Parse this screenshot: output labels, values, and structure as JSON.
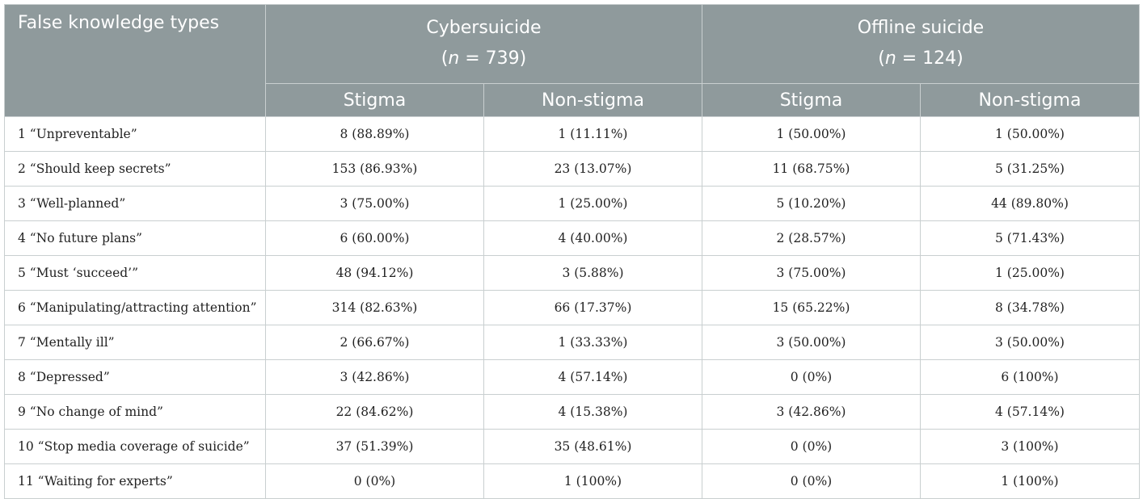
{
  "header": {
    "col0": "False knowledge types",
    "group1": {
      "title": "Cybersuicide",
      "n_prefix": "(",
      "n_var": "n",
      "n_rest": " = 739)"
    },
    "group2": {
      "title": "Offline suicide",
      "n_prefix": "(",
      "n_var": "n",
      "n_rest": " = 124)"
    },
    "sub": [
      "Stigma",
      "Non-stigma",
      "Stigma",
      "Non-stigma"
    ]
  },
  "rows": [
    {
      "label": "1 “Unpreventable”",
      "values": [
        "8 (88.89%)",
        "1 (11.11%)",
        "1 (50.00%)",
        "1 (50.00%)"
      ]
    },
    {
      "label": "2 “Should keep secrets”",
      "values": [
        "153 (86.93%)",
        "23 (13.07%)",
        "11 (68.75%)",
        "5 (31.25%)"
      ]
    },
    {
      "label": "3 “Well-planned”",
      "values": [
        "3 (75.00%)",
        "1 (25.00%)",
        "5 (10.20%)",
        "44 (89.80%)"
      ]
    },
    {
      "label": "4 “No future plans”",
      "values": [
        "6 (60.00%)",
        "4 (40.00%)",
        "2 (28.57%)",
        "5 (71.43%)"
      ]
    },
    {
      "label": "5 “Must ‘succeed’”",
      "values": [
        "48 (94.12%)",
        "3 (5.88%)",
        "3 (75.00%)",
        "1 (25.00%)"
      ]
    },
    {
      "label": "6 “Manipulating/attracting attention”",
      "values": [
        "314 (82.63%)",
        "66 (17.37%)",
        "15 (65.22%)",
        "8 (34.78%)"
      ]
    },
    {
      "label": "7 “Mentally ill”",
      "values": [
        "2 (66.67%)",
        "1 (33.33%)",
        "3 (50.00%)",
        "3 (50.00%)"
      ]
    },
    {
      "label": "8 “Depressed”",
      "values": [
        "3 (42.86%)",
        "4 (57.14%)",
        "0 (0%)",
        "6 (100%)"
      ]
    },
    {
      "label": "9 “No change of mind”",
      "values": [
        "22 (84.62%)",
        "4 (15.38%)",
        "3 (42.86%)",
        "4 (57.14%)"
      ]
    },
    {
      "label": "10 “Stop media coverage of suicide”",
      "values": [
        "37 (51.39%)",
        "35 (48.61%)",
        "0 (0%)",
        "3 (100%)"
      ]
    },
    {
      "label": "11 “Waiting for experts”",
      "values": [
        "0 (0%)",
        "1 (100%)",
        "0 (0%)",
        "1 (100%)"
      ]
    }
  ]
}
